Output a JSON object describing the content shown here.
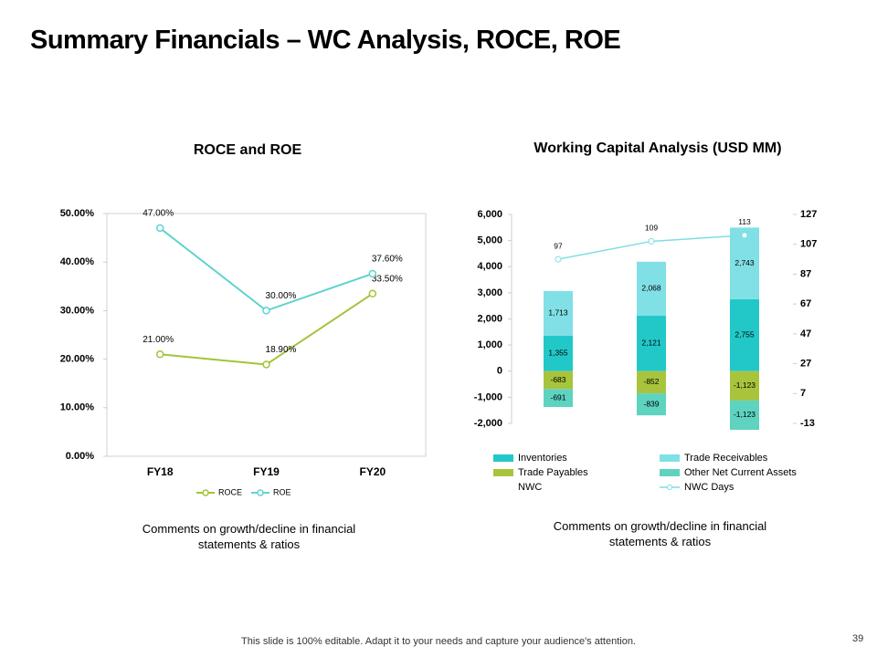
{
  "title": "Summary Financials – WC Analysis, ROCE, ROE",
  "comments": [
    "Comments on growth/decline in financial statements & ratios",
    "Comments on growth/decline in financial statements & ratios"
  ],
  "footer": "This slide is 100% editable. Adapt it to your needs and capture your audience's attention.",
  "page_number": "39",
  "chart_data": [
    {
      "type": "line",
      "title": "ROCE and ROE",
      "categories": [
        "FY18",
        "FY19",
        "FY20"
      ],
      "series": [
        {
          "name": "ROCE",
          "color": "#a3c43a",
          "values": [
            21,
            18.9,
            33.5
          ],
          "value_labels": [
            "21.00%",
            "18.90%",
            "33.50%"
          ]
        },
        {
          "name": "ROE",
          "color": "#5fd3cd",
          "values": [
            47,
            30,
            37.6
          ],
          "value_labels": [
            "47.00%",
            "30.00%",
            "37.60%"
          ]
        }
      ],
      "ylim": [
        0,
        50
      ],
      "yticks": [
        {
          "value": 0,
          "label": "0.00%"
        },
        {
          "value": 10,
          "label": "10.00%"
        },
        {
          "value": 20,
          "label": "20.00%"
        },
        {
          "value": 30,
          "label": "30.00%"
        },
        {
          "value": 40,
          "label": "40.00%"
        },
        {
          "value": 50,
          "label": "50.00%"
        }
      ],
      "grid": false,
      "legend": "bottom"
    },
    {
      "type": "bar",
      "stacked": true,
      "title": "Working Capital Analysis (USD MM)",
      "categories": [
        null,
        null,
        null
      ],
      "series": [
        {
          "name": "Inventories",
          "color": "#22c8c8",
          "values": [
            1355,
            2121,
            2755
          ],
          "value_labels": [
            "1,355",
            "2,121",
            "2,755"
          ]
        },
        {
          "name": "Trade Receivables",
          "color": "#80e0e6",
          "values": [
            1713,
            2068,
            2743
          ],
          "value_labels": [
            "1,713",
            "2,068",
            "2,743"
          ]
        },
        {
          "name": "Trade Payables",
          "color": "#a8c43c",
          "values": [
            -683,
            -852,
            -1123
          ],
          "value_labels": [
            "-683",
            "-852",
            "-1,123"
          ]
        },
        {
          "name": "Other Net Current Assets",
          "color": "#5dd3c0",
          "values": [
            -691,
            -839,
            -1123
          ],
          "value_labels": [
            "-691",
            "-839",
            "-1,123"
          ]
        },
        {
          "name": "NWC",
          "values": [
            null,
            null,
            null
          ]
        },
        {
          "name": "NWC Days",
          "type": "line",
          "axis": "y2",
          "color": "#7fdde3",
          "values": [
            97,
            109,
            113
          ]
        }
      ],
      "ylim": [
        -2000,
        6000
      ],
      "yticks": [
        {
          "value": -2000,
          "label": "-2,000"
        },
        {
          "value": -1000,
          "label": "-1,000"
        },
        0,
        {
          "value": 1000,
          "label": "1,000"
        },
        {
          "value": 2000,
          "label": "2,000"
        },
        {
          "value": 3000,
          "label": "3,000"
        },
        {
          "value": 4000,
          "label": "4,000"
        },
        {
          "value": 5000,
          "label": "5,000"
        },
        {
          "value": 6000,
          "label": "6,000"
        }
      ],
      "y2lim": [
        -13,
        127
      ],
      "y2ticks": [
        -13,
        7,
        27,
        47,
        67,
        87,
        107,
        127
      ],
      "grid": false,
      "legend": "bottom"
    }
  ]
}
